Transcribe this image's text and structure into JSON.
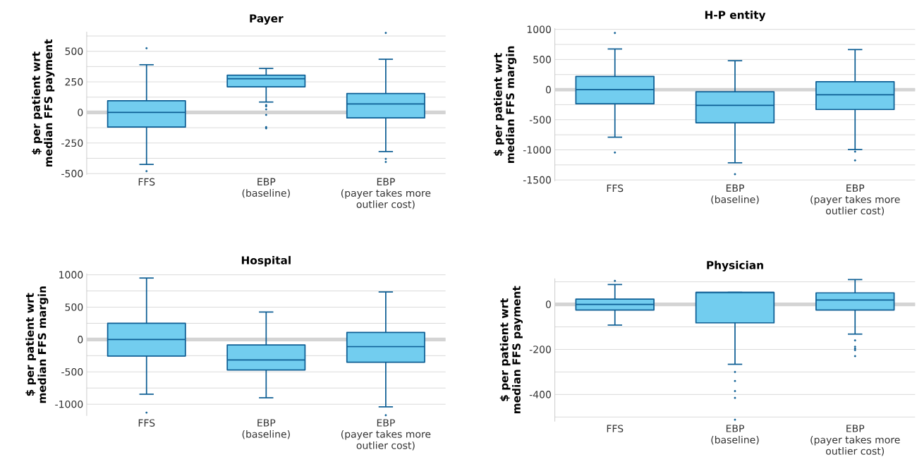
{
  "chart_data": [
    {
      "type": "box",
      "title": "Payer",
      "ylabel": "$ per patient wrt\nmedian FFS payment",
      "categories": [
        "FFS",
        "EBP\n(baseline)",
        "EBP\n(payer takes more\noutlier cost)"
      ],
      "series": [
        {
          "color": "#72cdef",
          "boxes": [
            {
              "low": -425,
              "q1": -120,
              "median": 0,
              "q3": 95,
              "high": 390,
              "outliers": [
                525,
                -480
              ]
            },
            {
              "low": 85,
              "q1": 210,
              "median": 275,
              "q3": 305,
              "high": 360,
              "outliers": [
                60,
                50,
                25,
                -20,
                -120,
                -130
              ]
            },
            {
              "low": -320,
              "q1": -45,
              "median": 70,
              "q3": 155,
              "high": 435,
              "outliers": [
                650,
                -380,
                -405
              ]
            }
          ]
        }
      ],
      "ylim": [
        -510,
        660
      ],
      "yticks": [
        -500,
        {
          "value": -375,
          "label": null
        },
        -250,
        {
          "value": -125,
          "label": null
        },
        0,
        {
          "value": 125,
          "label": null
        },
        250,
        {
          "value": 375,
          "label": null
        },
        500,
        {
          "value": 625,
          "label": null
        }
      ],
      "grid": "y",
      "ref_lines": [
        {
          "axis": "y",
          "value": 0,
          "color": "#d4d4d4"
        }
      ]
    },
    {
      "type": "box",
      "title": "H-P entity",
      "ylabel": "$ per patient wrt\nmedian FFS margin",
      "categories": [
        "FFS",
        "EBP\n(baseline)",
        "EBP\n(payer takes more\noutlier cost)"
      ],
      "series": [
        {
          "color": "#72cdef",
          "boxes": [
            {
              "low": -790,
              "q1": -235,
              "median": 0,
              "q3": 220,
              "high": 675,
              "outliers": [
                940,
                -1045
              ]
            },
            {
              "low": -1215,
              "q1": -550,
              "median": -260,
              "q3": -35,
              "high": 480,
              "outliers": [
                -1405
              ]
            },
            {
              "low": -995,
              "q1": -330,
              "median": -85,
              "q3": 130,
              "high": 665,
              "outliers": [
                -1030,
                -1175
              ]
            }
          ]
        }
      ],
      "ylim": [
        -1520,
        1020
      ],
      "yticks": [
        -1500,
        {
          "value": -1250,
          "label": null
        },
        -1000,
        {
          "value": -750,
          "label": null
        },
        -500,
        {
          "value": -250,
          "label": null
        },
        0,
        {
          "value": 250,
          "label": null
        },
        500,
        {
          "value": 750,
          "label": null
        },
        1000
      ],
      "grid": "y",
      "ref_lines": [
        {
          "axis": "y",
          "value": 0,
          "color": "#d4d4d4"
        }
      ]
    },
    {
      "type": "box",
      "title": "Hospital",
      "ylabel": "$ per patient wrt\nmedian FFS margin",
      "categories": [
        "FFS",
        "EBP\n(baseline)",
        "EBP\n(payer takes more\noutlier cost)"
      ],
      "series": [
        {
          "color": "#72cdef",
          "boxes": [
            {
              "low": -845,
              "q1": -255,
              "median": 0,
              "q3": 250,
              "high": 950,
              "outliers": [
                -1130
              ]
            },
            {
              "low": -900,
              "q1": -470,
              "median": -315,
              "q3": -85,
              "high": 425
            },
            {
              "low": -1040,
              "q1": -350,
              "median": -110,
              "q3": 110,
              "high": 735,
              "outliers": [
                -1170
              ]
            }
          ]
        }
      ],
      "ylim": [
        -1180,
        1020
      ],
      "yticks": [
        -1000,
        {
          "value": -750,
          "label": null
        },
        -500,
        {
          "value": -250,
          "label": null
        },
        0,
        {
          "value": 250,
          "label": null
        },
        500,
        {
          "value": 750,
          "label": null
        },
        1000
      ],
      "grid": "y",
      "ref_lines": [
        {
          "axis": "y",
          "value": 0,
          "color": "#d4d4d4"
        }
      ]
    },
    {
      "type": "box",
      "title": "Physician",
      "ylabel": "$ per patient wrt\nmedian FFS payment",
      "categories": [
        "FFS",
        "EBP\n(baseline)",
        "EBP\n(payer takes more\noutlier cost)"
      ],
      "series": [
        {
          "color": "#72cdef",
          "boxes": [
            {
              "low": -92,
              "q1": -25,
              "median": 0,
              "q3": 23,
              "high": 88,
              "outliers": [
                104
              ]
            },
            {
              "low": -266,
              "q1": -82,
              "median": 53,
              "q3": 53,
              "high": 53,
              "outliers": [
                -300,
                -340,
                -385,
                -415,
                -512
              ]
            },
            {
              "low": -132,
              "q1": -25,
              "median": 19,
              "q3": 51,
              "high": 110,
              "outliers": [
                -160,
                -188,
                -196,
                -203,
                -230
              ]
            }
          ]
        }
      ],
      "ylim": [
        -520,
        115
      ],
      "yticks": [
        {
          "value": -500,
          "label": null
        },
        -400,
        {
          "value": -300,
          "label": null
        },
        -200,
        {
          "value": -100,
          "label": null
        },
        0,
        {
          "value": 100,
          "label": null
        }
      ],
      "grid": "y",
      "ref_lines": [
        {
          "axis": "y",
          "value": 0,
          "color": "#d4d4d4"
        }
      ]
    }
  ]
}
